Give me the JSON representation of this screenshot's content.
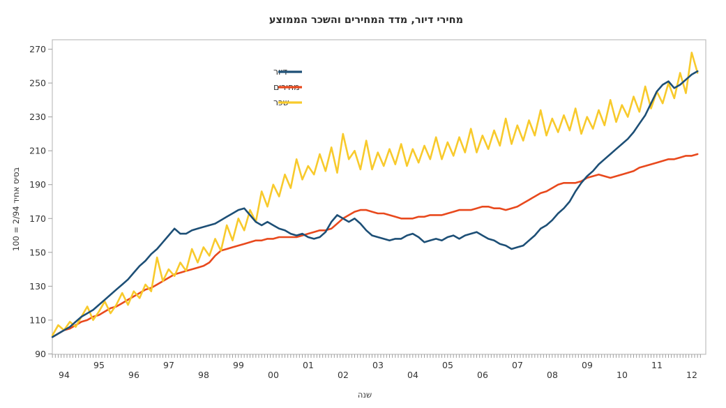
{
  "title": "מחירי דיור, מדד המחירים והשכר הממוצע",
  "axes": {
    "x_label": "שנה",
    "y_label": "בסיס אחיד 2/94 = 100"
  },
  "legend": {
    "items": [
      {
        "label": "דיור",
        "color": "#1D4F76"
      },
      {
        "label": "מחירים",
        "color": "#E8491D"
      },
      {
        "label": "שכר",
        "color": "#F8CA2C"
      }
    ]
  },
  "colors": {
    "frame": "#BDBDBD",
    "tick": "#9E9E9E",
    "background": "#FFFFFF"
  },
  "chart_data": {
    "type": "line",
    "title": "מחירי דיור, מדד המחירים והשכר הממוצע",
    "xlabel": "שנה",
    "ylabel": "בסיס אחיד 2/94 = 100",
    "ylim": [
      90,
      270
    ],
    "yticks": [
      90,
      110,
      130,
      150,
      170,
      190,
      210,
      230,
      250,
      270
    ],
    "xtick_labels": [
      "94",
      "95",
      "96",
      "97",
      "98",
      "99",
      "00",
      "01",
      "02",
      "03",
      "04",
      "05",
      "06",
      "07",
      "08",
      "09",
      "10",
      "11",
      "12"
    ],
    "grid": false,
    "legend_position": "upper-left-inside",
    "x_unit": "decimal year, samples every 2 months starting Feb-1994",
    "x_start": 1994.0833,
    "x_step": 0.16667,
    "series": [
      {
        "id": "housing",
        "name": "דיור",
        "color": "#1D4F76",
        "values": [
          100,
          102,
          104,
          106,
          109,
          112,
          114,
          116,
          119,
          122,
          125,
          128,
          131,
          134,
          138,
          142,
          145,
          149,
          152,
          156,
          160,
          164,
          161,
          161,
          163,
          164,
          165,
          166,
          167,
          169,
          171,
          173,
          175,
          176,
          172,
          168,
          166,
          168,
          166,
          164,
          163,
          161,
          160,
          161,
          159,
          158,
          159,
          162,
          168,
          172,
          170,
          168,
          170,
          167,
          163,
          160,
          159,
          158,
          157,
          158,
          158,
          160,
          161,
          159,
          156,
          157,
          158,
          157,
          159,
          160,
          158,
          160,
          161,
          162,
          160,
          158,
          157,
          155,
          154,
          152,
          153,
          154,
          157,
          160,
          164,
          166,
          169,
          173,
          176,
          180,
          186,
          191,
          195,
          198,
          202,
          205,
          208,
          211,
          214,
          217,
          221,
          226,
          231,
          238,
          245,
          249,
          251,
          247,
          249,
          252,
          255,
          257
        ]
      },
      {
        "id": "prices",
        "name": "מחירים",
        "color": "#E8491D",
        "values": [
          100,
          102,
          104,
          105,
          107,
          109,
          110,
          112,
          113,
          115,
          117,
          118,
          120,
          122,
          124,
          126,
          128,
          129,
          131,
          133,
          135,
          137,
          138,
          139,
          140,
          141,
          142,
          144,
          148,
          151,
          152,
          153,
          154,
          155,
          156,
          157,
          157,
          158,
          158,
          159,
          159,
          159,
          159,
          160,
          161,
          162,
          163,
          163,
          164,
          167,
          170,
          172,
          174,
          175,
          175,
          174,
          173,
          173,
          172,
          171,
          170,
          170,
          170,
          171,
          171,
          172,
          172,
          172,
          173,
          174,
          175,
          175,
          175,
          176,
          177,
          177,
          176,
          176,
          175,
          176,
          177,
          179,
          181,
          183,
          185,
          186,
          188,
          190,
          191,
          191,
          191,
          192,
          194,
          195,
          196,
          195,
          194,
          195,
          196,
          197,
          198,
          200,
          201,
          202,
          203,
          204,
          205,
          205,
          206,
          207,
          207,
          208
        ]
      },
      {
        "id": "wages",
        "name": "שכר",
        "color": "#F8CA2C",
        "values": [
          101,
          107,
          104,
          109,
          106,
          112,
          118,
          110,
          115,
          121,
          114,
          119,
          126,
          119,
          127,
          123,
          131,
          127,
          147,
          133,
          140,
          136,
          144,
          139,
          152,
          144,
          153,
          148,
          158,
          151,
          166,
          157,
          170,
          163,
          175,
          168,
          186,
          177,
          190,
          183,
          196,
          188,
          205,
          193,
          201,
          196,
          208,
          198,
          212,
          197,
          220,
          205,
          210,
          199,
          216,
          199,
          209,
          201,
          211,
          202,
          214,
          201,
          211,
          203,
          213,
          205,
          218,
          205,
          215,
          207,
          218,
          209,
          223,
          209,
          219,
          211,
          222,
          213,
          229,
          214,
          225,
          216,
          228,
          219,
          234,
          219,
          229,
          221,
          231,
          222,
          235,
          220,
          230,
          223,
          234,
          225,
          240,
          227,
          237,
          230,
          242,
          233,
          248,
          235,
          245,
          238,
          250,
          241,
          256,
          244,
          268,
          256
        ]
      }
    ]
  }
}
